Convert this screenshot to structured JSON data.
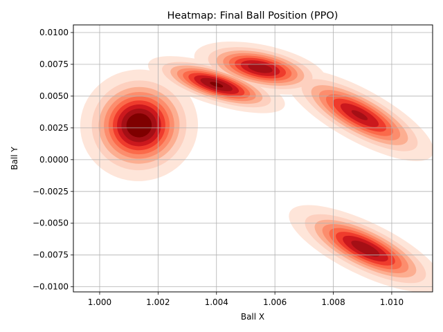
{
  "chart_data": {
    "type": "heatmap",
    "subtype": "kde-filled-contour",
    "title": "Heatmap: Final Ball Position (PPO)",
    "xlabel": "Ball X",
    "ylabel": "Ball Y",
    "xlim": [
      0.9991,
      1.0114
    ],
    "ylim": [
      -0.0104,
      0.0106
    ],
    "xticks": [
      1.0,
      1.002,
      1.004,
      1.006,
      1.008,
      1.01
    ],
    "xtick_labels": [
      "1.000",
      "1.002",
      "1.004",
      "1.006",
      "1.008",
      "1.010"
    ],
    "yticks": [
      -0.01,
      -0.0075,
      -0.005,
      -0.0025,
      0.0,
      0.0025,
      0.005,
      0.0075,
      0.01
    ],
    "ytick_labels": [
      "−0.0100",
      "−0.0075",
      "−0.0050",
      "−0.0025",
      "0.0000",
      "0.0025",
      "0.0050",
      "0.0075",
      "0.0100"
    ],
    "grid": true,
    "colormap": "Reds",
    "level_colors": [
      "#fee5d9",
      "#fdd0bf",
      "#fcae91",
      "#fc8d6d",
      "#fb6a4a",
      "#ef3b2c",
      "#cb181d",
      "#a50f15",
      "#7f0000"
    ],
    "clusters": [
      {
        "center": [
          1.00135,
          0.0027
        ],
        "spread": [
          0.00085,
          0.00185
        ],
        "angle": 0.1,
        "peak": 1.0
      },
      {
        "center": [
          1.004,
          0.0059
        ],
        "spread": [
          0.00105,
          0.00068
        ],
        "angle": -0.3,
        "peak": 0.9
      },
      {
        "center": [
          1.0055,
          0.0072
        ],
        "spread": [
          0.001,
          0.0008
        ],
        "angle": -0.2,
        "peak": 0.85
      },
      {
        "center": [
          1.0089,
          0.0035
        ],
        "spread": [
          0.00125,
          0.0009
        ],
        "angle": -0.5,
        "peak": 0.8
      },
      {
        "center": [
          1.0091,
          -0.007
        ],
        "spread": [
          0.00125,
          0.0009
        ],
        "angle": -0.45,
        "peak": 0.85
      }
    ]
  }
}
